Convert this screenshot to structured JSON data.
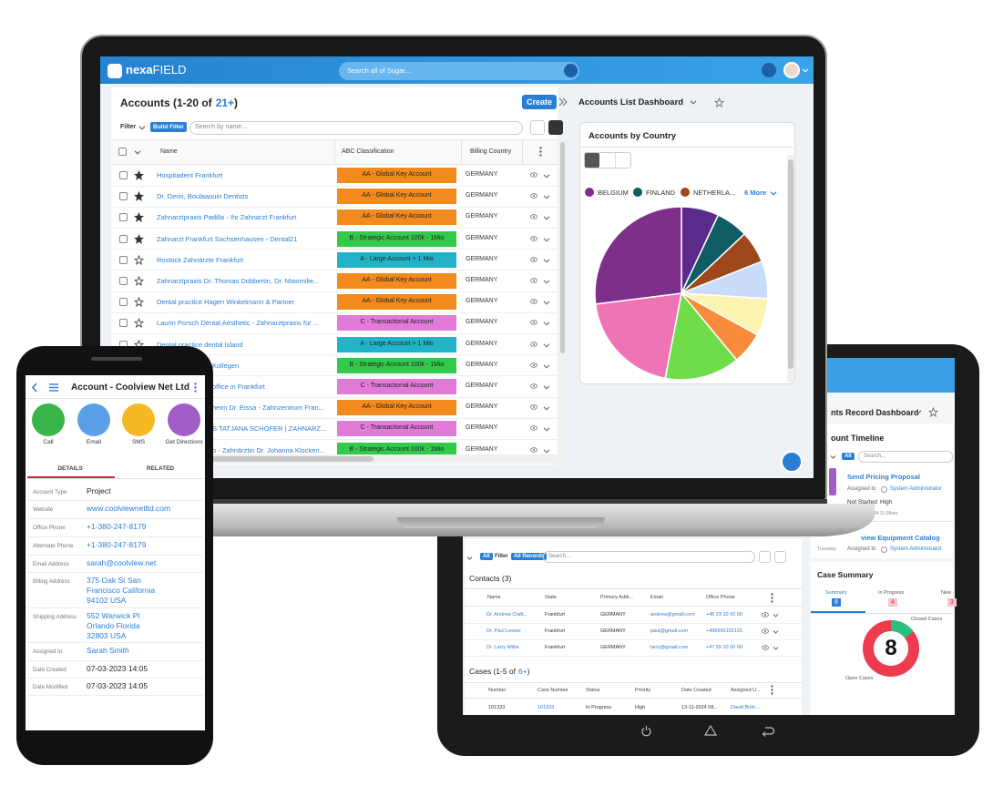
{
  "laptop": {
    "brand": {
      "a": "nexa",
      "b": "FIELD"
    },
    "global_search": "Search all of Sugar...",
    "accounts": {
      "title": "Accounts (1-20 of",
      "title_count": "21+",
      "title_end": ")",
      "create": "Create",
      "filter": "Filter",
      "build_filter": "Build Filter",
      "search": "Search by name...",
      "columns": [
        "Name",
        "ABC Classification",
        "Billing Country"
      ],
      "rows": [
        {
          "name": "Hospitadent Frankfurt",
          "classification": "AA - Global Key Account",
          "country": "GERMANY",
          "starred": true,
          "color": "#f28a1e"
        },
        {
          "name": "Dr. Derin, Boulaaouin Dentists",
          "classification": "AA - Global Key Account",
          "country": "GERMANY",
          "starred": true,
          "color": "#f28a1e"
        },
        {
          "name": "Zahnarztpraxis Padilla - Ihr Zahnarzt Frankfurt",
          "classification": "AA - Global Key Account",
          "country": "GERMANY",
          "starred": true,
          "color": "#f28a1e"
        },
        {
          "name": "Zahnarzt Frankfurt Sachsenhausen - Dental21",
          "classification": "B - Strategic Account 100k - 1Mio",
          "country": "GERMANY",
          "starred": true,
          "color": "#33c94a"
        },
        {
          "name": "Rostock Zahnärzte Frankfurt",
          "classification": "A - Large Account > 1 Mio",
          "country": "GERMANY",
          "starred": false,
          "color": "#22b3c8"
        },
        {
          "name": "Zahnarztpraxis Dr. Thomas Dobbertin, Dr. Maximilie...",
          "classification": "AA - Global Key Account",
          "country": "GERMANY",
          "starred": false,
          "color": "#f28a1e"
        },
        {
          "name": "Dental practice Hagen Winkelmann & Partner",
          "classification": "AA - Global Key Account",
          "country": "GERMANY",
          "starred": false,
          "color": "#f28a1e"
        },
        {
          "name": "Laurin Porsch Dental Aesthetic - Zahnarztpraxis für ...",
          "classification": "C - Transactional Account",
          "country": "GERMANY",
          "starred": false,
          "color": "#e07bd8"
        },
        {
          "name": "Dental practice dental Island",
          "classification": "A - Large Account > 1 Mio",
          "country": "GERMANY",
          "starred": false,
          "color": "#22b3c8"
        },
        {
          "name": "Kollegen",
          "classification": "B - Strategic Account 100k - 1Mio",
          "country": "GERMANY",
          "starred": false,
          "color": "#33c94a"
        },
        {
          "name": "office in Frankfurt",
          "classification": "C - Transactional Account",
          "country": "GERMANY",
          "starred": false,
          "color": "#e07bd8"
        },
        {
          "name": "heim Dr. Eissa - Zahnzentrum Fran...",
          "classification": "AA - Global Key Account",
          "country": "GERMANY",
          "starred": false,
          "color": "#f28a1e"
        },
        {
          "name": "S TATJANA SCHOFER | ZAHNARZ...",
          "classification": "C - Transactional Account",
          "country": "GERMANY",
          "starred": false,
          "color": "#e07bd8"
        },
        {
          "name": "o - Zahnärztin Dr. Johanna Klocken...",
          "classification": "B - Strategic Account 100k - 1Mio",
          "country": "GERMANY",
          "starred": false,
          "color": "#33c94a"
        }
      ]
    },
    "dashboard": {
      "title": "Accounts List Dashboard",
      "card_title": "Accounts by Country",
      "chart": {
        "type": "pie",
        "legend": [
          {
            "name": "BELGIUM",
            "color": "#7e2f8a"
          },
          {
            "name": "FINLAND",
            "color": "#0f5c64"
          },
          {
            "name": "NETHERLA...",
            "color": "#a0481d"
          }
        ],
        "more": "6 More",
        "values": [
          7,
          6,
          6,
          7,
          7,
          6,
          14,
          20,
          27
        ],
        "colors": [
          "#5b2b8c",
          "#0f5c64",
          "#a0481d",
          "#c9dcfb",
          "#fdf3b0",
          "#f98b3d",
          "#6fdd4a",
          "#ef74b6",
          "#7e2f8a"
        ]
      }
    }
  },
  "tablet": {
    "dashboard_title": "nts Record Dashboard",
    "timeline": {
      "title": "ount Timeline",
      "all": "All",
      "search": "Search...",
      "items": [
        {
          "title": "Send Pricing Proposal",
          "assigned_label": "Assigned to",
          "assignee": "System Administrator",
          "status": "Not Started",
          "priority": "High",
          "modified": "fied 04-11-2024 11:38am"
        },
        {
          "title": "view Equipment Catalog",
          "day": "Tuesday",
          "assigned_label": "Assigned to",
          "assignee": "System Administrator"
        }
      ]
    },
    "case_summary": {
      "title": "Case Summary",
      "tabs": [
        {
          "label": "Summary",
          "count": 8,
          "color": "#2a7fd4"
        },
        {
          "label": "In Progress",
          "count": 4,
          "color": "#f7c6cc"
        },
        {
          "label": "New",
          "count": 3,
          "color": "#f7c6cc"
        }
      ],
      "total": 8,
      "closed": "Closed Cases",
      "open": "Open Cases"
    },
    "records": {
      "all": "All",
      "filter": "Filter",
      "all_records": "All Records",
      "search": "Search...",
      "contacts": {
        "title": "Contacts (3)",
        "columns": [
          "Name",
          "State",
          "Primary Addr...",
          "Email",
          "Office Phone"
        ],
        "rows": [
          [
            "Dr. Andrew Craft...",
            "Frankfurt",
            "GERMANY",
            "andrew@gmail.com",
            "+46 23 10 00 00"
          ],
          [
            "Dr. Paul Leeser",
            "Frankfurt",
            "GERMANY",
            "paul@gmail.com",
            "+496966102131"
          ],
          [
            "Dr. Larry Willis",
            "Frankfurt",
            "GERMANY",
            "larry@gmail.com",
            "+47 55 10 00 00"
          ]
        ]
      },
      "cases": {
        "title": "Cases (1-5 of",
        "title_count": "6+",
        "title_end": ")",
        "columns": [
          "Number",
          "Case Number",
          "Status",
          "Priority",
          "Date Created",
          "Assigned U..."
        ],
        "rows": [
          [
            "101333",
            "101333",
            "In Progress",
            "High",
            "13-11-2024 08...",
            "David Boltc..."
          ]
        ]
      }
    }
  },
  "phone": {
    "title": "Account - Coolview Net Ltd",
    "actions": [
      {
        "label": "Call",
        "color": "#3ab54a"
      },
      {
        "label": "Email",
        "color": "#5aa0e6"
      },
      {
        "label": "SMS",
        "color": "#f5b921"
      },
      {
        "label": "Get Directions",
        "color": "#a05fc8"
      }
    ],
    "tabs": [
      "DETAILS",
      "RELATED"
    ],
    "fields": [
      {
        "label": "Account Type",
        "value": [
          "Project"
        ],
        "link": false
      },
      {
        "label": "Website",
        "value": [
          "www.coolviewnetltd.com"
        ],
        "link": true
      },
      {
        "label": "Office Phone",
        "value": [
          "+1-380-247-8179"
        ],
        "link": true
      },
      {
        "label": "Alternate Phone",
        "value": [
          "+1-380-247-8179"
        ],
        "link": true
      },
      {
        "label": "Email Address",
        "value": [
          "sarah@coolview.net"
        ],
        "link": true
      },
      {
        "label": "Billing Address",
        "value": [
          "375 Oak St San",
          "Francisco California",
          "94102 USA"
        ],
        "link": true
      },
      {
        "label": "Shipping Address",
        "value": [
          "552 Warwick Pl",
          "Orlando Florida",
          "32803 USA"
        ],
        "link": true
      },
      {
        "label": "Assigned to",
        "value": [
          "Sarah Smith"
        ],
        "link": true
      },
      {
        "label": "Date Created",
        "value": [
          "07-03-2023 14:05"
        ],
        "link": false
      },
      {
        "label": "Date Modified",
        "value": [
          "07-03-2023 14:05"
        ],
        "link": false
      }
    ]
  }
}
